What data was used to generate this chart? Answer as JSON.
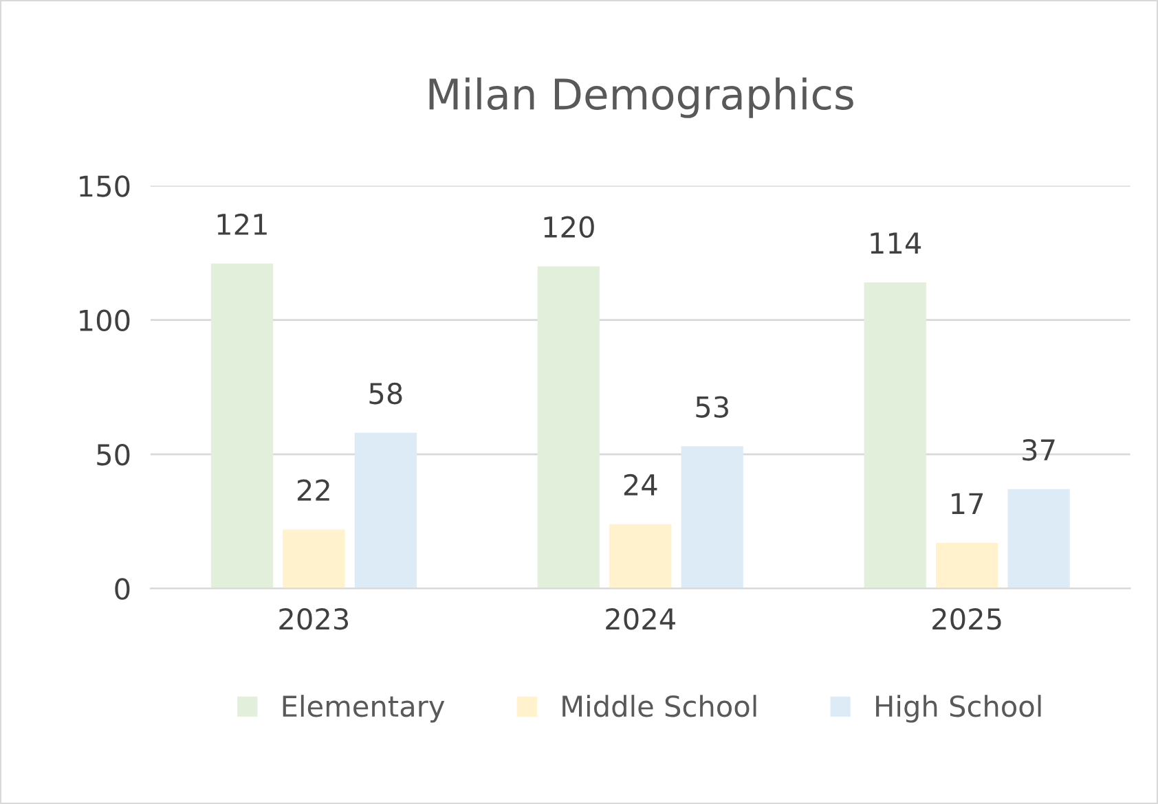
{
  "chart_data": {
    "type": "bar",
    "title": "Milan Demographics",
    "categories": [
      "2023",
      "2024",
      "2025"
    ],
    "series": [
      {
        "name": "Elementary",
        "color": "#e2efda",
        "values": [
          121,
          120,
          114
        ]
      },
      {
        "name": "Middle School",
        "color": "#fff2cc",
        "values": [
          22,
          24,
          17
        ]
      },
      {
        "name": "High School",
        "color": "#ddebf7",
        "values": [
          58,
          53,
          37
        ]
      }
    ],
    "ylim": [
      0,
      150
    ],
    "yticks": [
      0,
      50,
      100,
      150
    ],
    "grid": "y",
    "legend": "bottom",
    "data_labels": true
  }
}
